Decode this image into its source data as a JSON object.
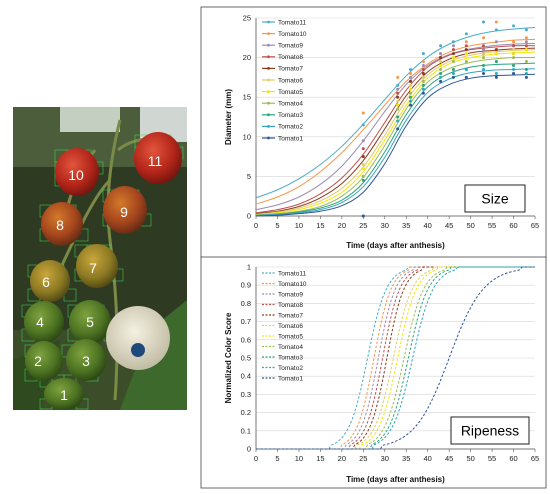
{
  "photo": {
    "labels": [
      "1",
      "2",
      "3",
      "4",
      "5",
      "6",
      "7",
      "8",
      "9",
      "10",
      "11"
    ]
  },
  "chart_data": [
    {
      "type": "line",
      "tag": "Size",
      "xlabel": "Time (days after anthesis)",
      "ylabel": "Diameter (mm)",
      "xlim": [
        0,
        65
      ],
      "ylim": [
        0,
        25
      ],
      "xticks": [
        0,
        5,
        10,
        15,
        20,
        25,
        30,
        35,
        40,
        45,
        50,
        55,
        60,
        65
      ],
      "yticks": [
        0,
        5,
        10,
        15,
        20,
        25
      ],
      "legend": "top-left",
      "series": [
        {
          "name": "Tomato11",
          "color": "#4bacc6",
          "x": [
            0,
            5,
            10,
            15,
            20,
            25,
            30,
            35,
            40,
            45,
            50,
            55,
            60,
            65
          ],
          "y": [
            2.3,
            3.3,
            4.7,
            6.5,
            8.8,
            11.6,
            14.7,
            17.7,
            20.1,
            21.7,
            22.7,
            23.3,
            23.6,
            23.8
          ]
        },
        {
          "name": "Tomato10",
          "color": "#f79646",
          "x": [
            0,
            5,
            10,
            15,
            20,
            25,
            30,
            35,
            40,
            45,
            50,
            55,
            60,
            65
          ],
          "y": [
            1.5,
            2.4,
            3.7,
            5.6,
            8.0,
            10.9,
            14.0,
            17.0,
            19.2,
            20.7,
            21.5,
            21.9,
            22.2,
            22.3
          ]
        },
        {
          "name": "Tomato9",
          "color": "#9c8bb5",
          "x": [
            0,
            5,
            10,
            15,
            20,
            25,
            30,
            35,
            40,
            45,
            50,
            55,
            60,
            65
          ],
          "y": [
            0.8,
            1.4,
            2.4,
            4.0,
            6.3,
            9.5,
            13.2,
            16.6,
            19.0,
            20.4,
            21.1,
            21.5,
            21.7,
            21.8
          ]
        },
        {
          "name": "Tomato8",
          "color": "#c0504d",
          "x": [
            0,
            5,
            10,
            15,
            20,
            25,
            30,
            35,
            40,
            45,
            50,
            55,
            60,
            65
          ],
          "y": [
            0.4,
            0.8,
            1.5,
            2.8,
            4.8,
            7.8,
            11.8,
            15.9,
            18.8,
            20.3,
            21.0,
            21.3,
            21.5,
            21.5
          ]
        },
        {
          "name": "Tomato7",
          "color": "#8b3a1a",
          "x": [
            0,
            5,
            10,
            15,
            20,
            25,
            30,
            35,
            40,
            45,
            50,
            55,
            60,
            65
          ],
          "y": [
            0.3,
            0.6,
            1.2,
            2.3,
            4.1,
            7.0,
            11.0,
            15.2,
            18.2,
            19.8,
            20.6,
            20.9,
            21.1,
            21.2
          ]
        },
        {
          "name": "Tomato6",
          "color": "#e2c96a",
          "x": [
            0,
            5,
            10,
            15,
            20,
            25,
            30,
            35,
            40,
            45,
            50,
            55,
            60,
            65
          ],
          "y": [
            0.2,
            0.5,
            1.0,
            1.9,
            3.5,
            6.2,
            10.2,
            14.6,
            17.8,
            19.5,
            20.3,
            20.7,
            20.9,
            21.0
          ]
        },
        {
          "name": "Tomato5",
          "color": "#f2e600",
          "x": [
            0,
            5,
            10,
            15,
            20,
            25,
            30,
            35,
            40,
            45,
            50,
            55,
            60,
            65
          ],
          "y": [
            0.2,
            0.4,
            0.8,
            1.6,
            3.0,
            5.6,
            9.6,
            14.0,
            17.4,
            19.2,
            20.0,
            20.4,
            20.6,
            20.7
          ]
        },
        {
          "name": "Tomato4",
          "color": "#9bbb59",
          "x": [
            0,
            5,
            10,
            15,
            20,
            25,
            30,
            35,
            40,
            45,
            50,
            55,
            60,
            65
          ],
          "y": [
            0.1,
            0.3,
            0.6,
            1.2,
            2.5,
            4.9,
            8.9,
            13.5,
            16.9,
            18.6,
            19.4,
            19.8,
            20.0,
            20.0
          ]
        },
        {
          "name": "Tomato3",
          "color": "#2ca37a",
          "x": [
            0,
            5,
            10,
            15,
            20,
            25,
            30,
            35,
            40,
            45,
            50,
            55,
            60,
            65
          ],
          "y": [
            0.1,
            0.2,
            0.5,
            1.0,
            2.0,
            4.2,
            8.1,
            12.8,
            16.3,
            18.0,
            18.8,
            19.1,
            19.2,
            19.3
          ]
        },
        {
          "name": "Tomato2",
          "color": "#31a6c4",
          "x": [
            0,
            5,
            10,
            15,
            20,
            25,
            30,
            35,
            40,
            45,
            50,
            55,
            60,
            65
          ],
          "y": [
            0.1,
            0.2,
            0.4,
            0.8,
            1.7,
            3.7,
            7.4,
            12.1,
            15.6,
            17.3,
            18.1,
            18.4,
            18.5,
            18.6
          ]
        },
        {
          "name": "Tomato1",
          "color": "#2f5597",
          "x": [
            0,
            5,
            10,
            15,
            20,
            25,
            30,
            35,
            40,
            45,
            50,
            55,
            60,
            65
          ],
          "y": [
            0.0,
            0.1,
            0.3,
            0.6,
            1.3,
            3.0,
            6.6,
            11.4,
            14.9,
            16.6,
            17.4,
            17.7,
            17.8,
            17.9
          ]
        }
      ],
      "points": [
        {
          "series": "Tomato11",
          "x": [
            25,
            33,
            36,
            39,
            43,
            46,
            49,
            53,
            56,
            60,
            63
          ],
          "y": [
            11.5,
            16.5,
            18.5,
            20.5,
            21.5,
            22.0,
            23.0,
            24.5,
            23.5,
            24.0,
            23.5
          ]
        },
        {
          "series": "Tomato10",
          "x": [
            25,
            33,
            36,
            39,
            43,
            46,
            49,
            53,
            56,
            60,
            63
          ],
          "y": [
            13.0,
            17.5,
            18.0,
            19.5,
            20.5,
            21.0,
            22.0,
            22.5,
            24.5,
            22.0,
            22.5
          ]
        },
        {
          "series": "Tomato9",
          "x": [
            25,
            33,
            36,
            39,
            43,
            46,
            49,
            53,
            56,
            60,
            63
          ],
          "y": [
            9.5,
            16.0,
            17.5,
            19.0,
            20.5,
            21.5,
            21.0,
            21.0,
            22.0,
            21.5,
            22.0
          ]
        },
        {
          "series": "Tomato8",
          "x": [
            25,
            33,
            36,
            39,
            43,
            46,
            49,
            53,
            56,
            60,
            63
          ],
          "y": [
            8.5,
            15.5,
            17.0,
            18.5,
            20.0,
            21.0,
            21.5,
            21.5,
            21.0,
            21.5,
            21.5
          ]
        },
        {
          "series": "Tomato7",
          "x": [
            25,
            33,
            36,
            39,
            43,
            46,
            49,
            53,
            56,
            60,
            63
          ],
          "y": [
            7.5,
            15.0,
            17.0,
            18.0,
            20.0,
            20.5,
            21.0,
            20.5,
            21.0,
            20.5,
            21.0
          ]
        },
        {
          "series": "Tomato6",
          "x": [
            25,
            33,
            36,
            39,
            43,
            46,
            49,
            53,
            56,
            60,
            63
          ],
          "y": [
            6.5,
            14.5,
            16.5,
            17.5,
            19.5,
            20.0,
            20.5,
            20.5,
            20.5,
            21.0,
            21.0
          ]
        },
        {
          "series": "Tomato5",
          "x": [
            25,
            33,
            36,
            39,
            43,
            46,
            49,
            53,
            56,
            60,
            63
          ],
          "y": [
            6.0,
            14.0,
            16.0,
            17.0,
            19.0,
            20.0,
            20.5,
            20.0,
            20.5,
            20.5,
            21.0
          ]
        },
        {
          "series": "Tomato4",
          "x": [
            25,
            33,
            36,
            39,
            43,
            46,
            49,
            53,
            56,
            60,
            63
          ],
          "y": [
            5.0,
            13.5,
            15.5,
            17.0,
            18.5,
            19.5,
            19.5,
            20.0,
            19.5,
            20.0,
            19.5
          ]
        },
        {
          "series": "Tomato3",
          "x": [
            25,
            33,
            36,
            39,
            43,
            46,
            49,
            53,
            56,
            60,
            63
          ],
          "y": [
            4.5,
            12.5,
            15.0,
            16.5,
            18.0,
            18.5,
            18.5,
            19.0,
            19.5,
            19.0,
            18.5
          ]
        },
        {
          "series": "Tomato2",
          "x": [
            25,
            33,
            36,
            39,
            43,
            46,
            49,
            53,
            56,
            60,
            63
          ],
          "y": [
            0.0,
            12.0,
            14.5,
            16.0,
            17.5,
            18.0,
            18.5,
            18.5,
            18.0,
            18.5,
            18.0
          ]
        },
        {
          "series": "Tomato1",
          "x": [
            25,
            33,
            36,
            39,
            43,
            46,
            49,
            53,
            56,
            60,
            63
          ],
          "y": [
            0.0,
            11.0,
            14.0,
            15.5,
            17.0,
            17.5,
            17.5,
            18.0,
            17.5,
            18.0,
            17.5
          ]
        }
      ]
    },
    {
      "type": "line",
      "tag": "Ripeness",
      "xlabel": "Time (days after anthesis)",
      "ylabel": "Normalized Color Score",
      "xlim": [
        0,
        65
      ],
      "ylim": [
        0,
        1
      ],
      "xticks": [
        0,
        5,
        10,
        15,
        20,
        25,
        30,
        35,
        40,
        45,
        50,
        55,
        60,
        65
      ],
      "yticks": [
        0,
        0.1,
        0.2,
        0.3,
        0.4,
        0.5,
        0.6,
        0.7,
        0.8,
        0.9,
        1
      ],
      "legend": "top-left",
      "series": [
        {
          "name": "Tomato11",
          "color": "#4bacc6",
          "midpoint": 26.0,
          "width": 2.2
        },
        {
          "name": "Tomato10",
          "color": "#f79646",
          "midpoint": 27.5,
          "width": 2.0
        },
        {
          "name": "Tomato9",
          "color": "#9c8bb5",
          "midpoint": 28.5,
          "width": 2.0
        },
        {
          "name": "Tomato8",
          "color": "#c0504d",
          "midpoint": 29.5,
          "width": 2.0
        },
        {
          "name": "Tomato7",
          "color": "#8b3a1a",
          "midpoint": 30.5,
          "width": 2.0
        },
        {
          "name": "Tomato6",
          "color": "#e2c96a",
          "midpoint": 32.0,
          "width": 2.2
        },
        {
          "name": "Tomato5",
          "color": "#f2e600",
          "midpoint": 33.0,
          "width": 2.2
        },
        {
          "name": "Tomato4",
          "color": "#9bbb59",
          "midpoint": 34.5,
          "width": 2.3
        },
        {
          "name": "Tomato3",
          "color": "#2ca37a",
          "midpoint": 35.5,
          "width": 2.3
        },
        {
          "name": "Tomato2",
          "color": "#31a6c4",
          "midpoint": 36.5,
          "width": 2.4
        },
        {
          "name": "Tomato1",
          "color": "#2f5597",
          "midpoint": 45.0,
          "width": 4.0
        }
      ]
    }
  ]
}
